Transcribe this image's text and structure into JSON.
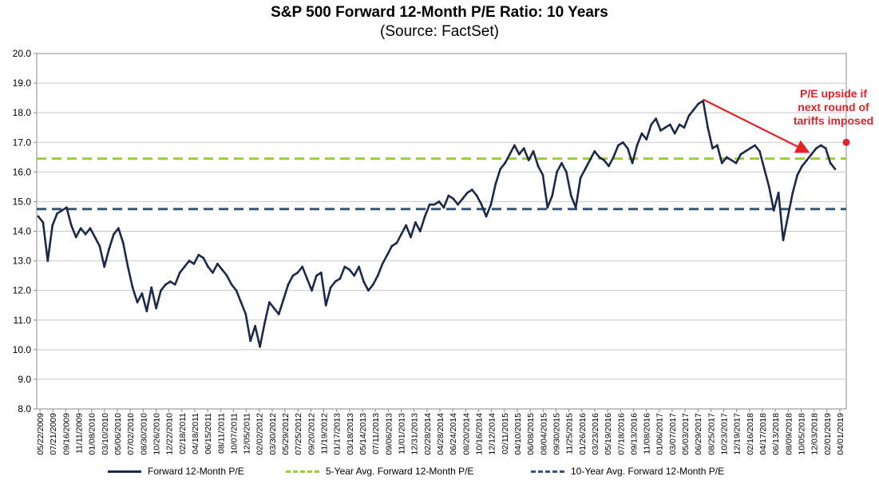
{
  "chart_data": {
    "type": "line",
    "title": "S&P 500 Forward 12-Month P/E Ratio: 10 Years",
    "subtitle": "(Source: FactSet)",
    "xlabel": "",
    "ylabel": "",
    "ylim": [
      8.0,
      20.0
    ],
    "yticks": [
      "8.0",
      "9.0",
      "10.0",
      "11.0",
      "12.0",
      "13.0",
      "14.0",
      "15.0",
      "16.0",
      "17.0",
      "18.0",
      "19.0",
      "20.0"
    ],
    "xticks": [
      "05/22/2009",
      "07/21/2009",
      "09/16/2009",
      "11/11/2009",
      "01/08/2010",
      "03/10/2010",
      "05/06/2010",
      "07/02/2010",
      "08/30/2010",
      "10/26/2010",
      "12/22/2010",
      "02/18/2011",
      "04/18/2011",
      "06/15/2011",
      "08/11/2011",
      "10/07/2011",
      "12/05/2011",
      "02/02/2012",
      "03/30/2012",
      "05/29/2012",
      "07/25/2012",
      "09/20/2012",
      "11/19/2012",
      "01/17/2013",
      "03/18/2013",
      "05/14/2013",
      "07/11/2013",
      "09/06/2013",
      "11/01/2013",
      "12/31/2013",
      "02/28/2014",
      "04/28/2014",
      "06/24/2014",
      "08/20/2014",
      "10/16/2014",
      "12/12/2014",
      "02/11/2015",
      "04/10/2015",
      "06/08/2015",
      "08/04/2015",
      "09/30/2015",
      "11/25/2015",
      "01/26/2016",
      "03/23/2016",
      "05/19/2016",
      "07/18/2016",
      "09/13/2016",
      "11/08/2016",
      "01/06/2017",
      "03/07/2017",
      "05/03/2017",
      "06/29/2017",
      "08/25/2017",
      "10/23/2017",
      "12/19/2017",
      "02/16/2018",
      "04/17/2018",
      "06/13/2018",
      "08/09/2018",
      "10/05/2018",
      "12/03/2018",
      "02/01/2019",
      "04/01/2019"
    ],
    "series": [
      {
        "name": "Forward 12-Month P/E",
        "color": "#1b2a4a",
        "style": "solid",
        "values": [
          14.5,
          14.3,
          13.0,
          14.2,
          14.6,
          14.7,
          14.8,
          14.2,
          13.8,
          14.1,
          13.9,
          14.1,
          13.8,
          13.5,
          12.8,
          13.4,
          13.9,
          14.1,
          13.6,
          12.8,
          12.1,
          11.6,
          11.9,
          11.3,
          12.1,
          11.4,
          12.0,
          12.2,
          12.3,
          12.2,
          12.6,
          12.8,
          13.0,
          12.9,
          13.2,
          13.1,
          12.8,
          12.6,
          12.9,
          12.7,
          12.5,
          12.2,
          12.0,
          11.6,
          11.2,
          10.3,
          10.8,
          10.1,
          10.9,
          11.6,
          11.4,
          11.2,
          11.7,
          12.2,
          12.5,
          12.6,
          12.8,
          12.4,
          12.0,
          12.5,
          12.6,
          11.5,
          12.1,
          12.3,
          12.4,
          12.8,
          12.7,
          12.5,
          12.8,
          12.3,
          12.0,
          12.2,
          12.5,
          12.9,
          13.2,
          13.5,
          13.6,
          13.9,
          14.2,
          13.8,
          14.3,
          14.0,
          14.5,
          14.9,
          14.9,
          15.0,
          14.8,
          15.2,
          15.1,
          14.9,
          15.1,
          15.3,
          15.4,
          15.2,
          14.9,
          14.5,
          14.9,
          15.6,
          16.1,
          16.3,
          16.6,
          16.9,
          16.6,
          16.8,
          16.4,
          16.7,
          16.2,
          15.9,
          14.8,
          15.2,
          16.0,
          16.3,
          16.0,
          15.2,
          14.8,
          15.8,
          16.1,
          16.4,
          16.7,
          16.5,
          16.4,
          16.2,
          16.5,
          16.9,
          17.0,
          16.8,
          16.3,
          16.9,
          17.3,
          17.1,
          17.6,
          17.8,
          17.4,
          17.5,
          17.6,
          17.3,
          17.6,
          17.5,
          17.9,
          18.1,
          18.3,
          18.4,
          17.5,
          16.8,
          16.9,
          16.3,
          16.5,
          16.4,
          16.3,
          16.6,
          16.7,
          16.8,
          16.9,
          16.7,
          16.1,
          15.5,
          14.7,
          15.3,
          13.7,
          14.5,
          15.3,
          15.9,
          16.2,
          16.4,
          16.6,
          16.8,
          16.9,
          16.8,
          16.3,
          16.1
        ]
      },
      {
        "name": "5-Year Avg. Forward 12-Month P/E",
        "color": "#9dcc3c",
        "style": "dashed",
        "value": 16.45
      },
      {
        "name": "10-Year Avg. Forward 12-Month P/E",
        "color": "#34557c",
        "style": "dashed",
        "value": 14.75
      }
    ],
    "annotation": {
      "lines": [
        "P/E upside if",
        "next round of",
        "tariffs imposed"
      ],
      "color": "#e8202a",
      "arrow_from": {
        "index": 140,
        "value": 18.45
      },
      "arrow_to": {
        "index": 163,
        "value": 16.7
      },
      "marker": {
        "index": 169,
        "value": 17.0
      }
    },
    "legend": [
      "Forward 12-Month P/E",
      "5-Year Avg. Forward 12-Month P/E",
      "10-Year Avg. Forward 12-Month P/E"
    ]
  }
}
